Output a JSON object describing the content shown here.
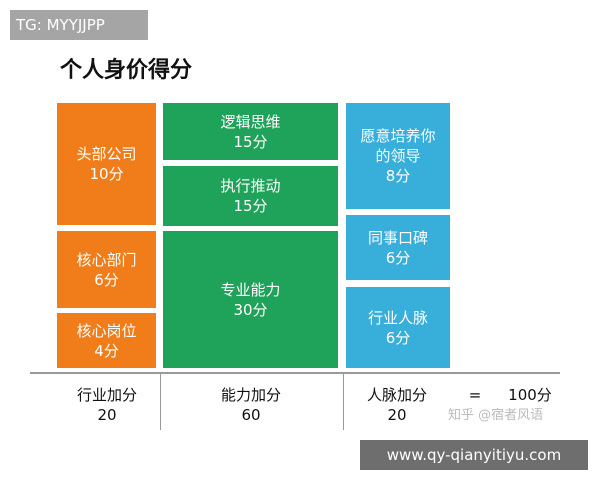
{
  "header": {
    "tag": "TG: MYYJJPP",
    "title": "个人身价得分"
  },
  "columns": [
    {
      "color": "#f07d1a",
      "blocks": [
        [
          "头部公司",
          "10分"
        ],
        [
          "核心部门",
          "6分"
        ],
        [
          "核心岗位",
          "4分"
        ]
      ],
      "footer": [
        "行业加分",
        "20"
      ]
    },
    {
      "color": "#1fa25a",
      "blocks": [
        [
          "逻辑思维",
          "15分"
        ],
        [
          "执行推动",
          "15分"
        ],
        [
          "专业能力",
          "30分"
        ]
      ],
      "footer": [
        "能力加分",
        "60"
      ]
    },
    {
      "color": "#38afdb",
      "blocks": [
        [
          "愿意培养你",
          "的领导",
          "8分"
        ],
        [
          "同事口碑",
          "6分"
        ],
        [
          "行业人脉",
          "6分"
        ]
      ],
      "footer": [
        "人脉加分",
        "20"
      ]
    }
  ],
  "equals": "=",
  "total": "100分",
  "watermark": "知乎 @宿者风语",
  "site": "www.qy-qianyitiyu.com"
}
